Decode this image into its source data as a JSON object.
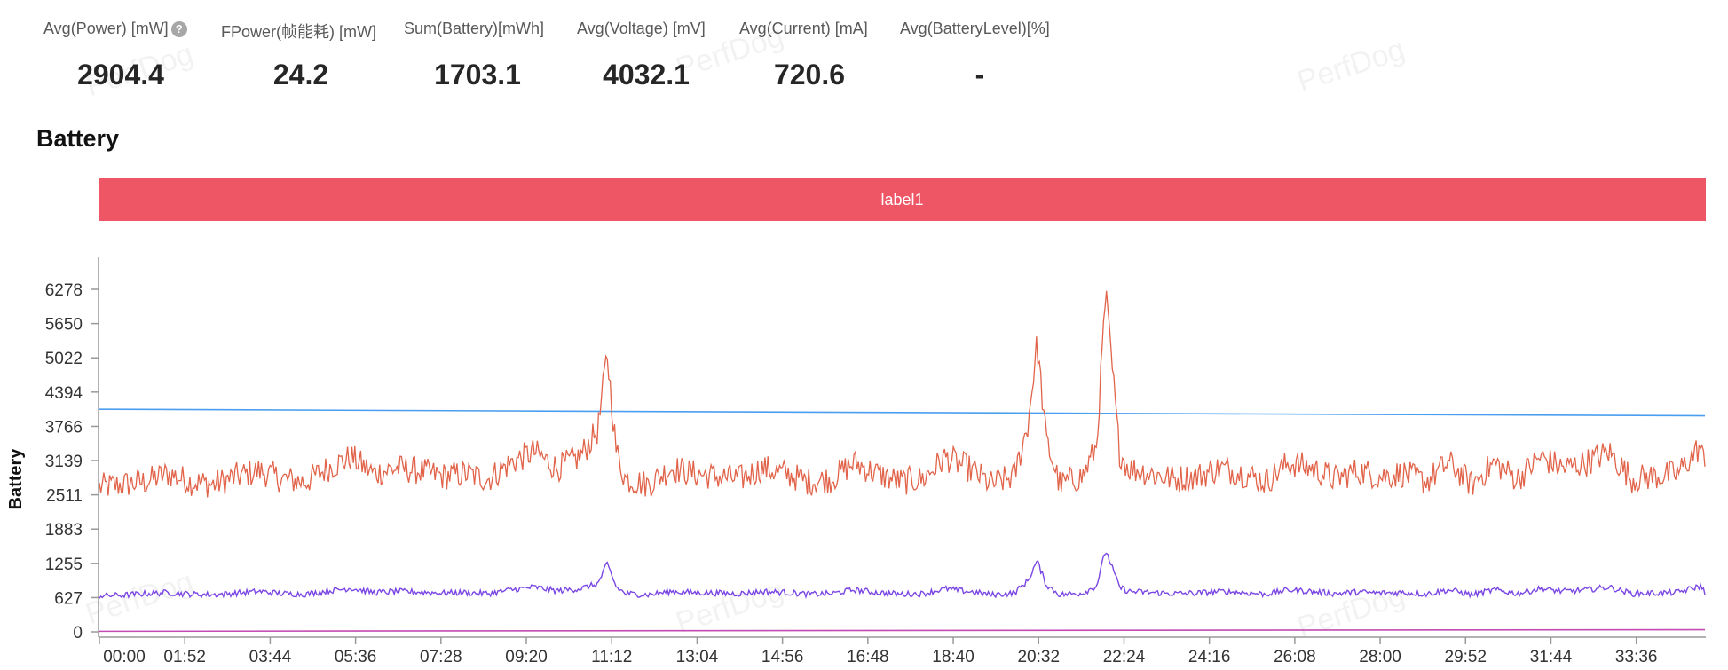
{
  "stats": [
    {
      "label": "Avg(Power) [mW]",
      "value": "2904.4",
      "has_help": true
    },
    {
      "label": "FPower(帧能耗) [mW]",
      "value": "24.2",
      "has_help": false
    },
    {
      "label": "Sum(Battery)[mWh]",
      "value": "1703.1",
      "has_help": false
    },
    {
      "label": "Avg(Voltage) [mV]",
      "value": "4032.1",
      "has_help": false
    },
    {
      "label": "Avg(Current) [mA]",
      "value": "720.6",
      "has_help": false
    },
    {
      "label": "Avg(BatteryLevel)[%]",
      "value": "-",
      "has_help": false
    }
  ],
  "help_icon": "?",
  "watermark_text": "PerfDog",
  "section_title": "Battery",
  "label_bar": {
    "text": "label1",
    "color": "#ee5666"
  },
  "chart_data": {
    "type": "line",
    "title": "",
    "ylabel": "Battery",
    "xlabel": "",
    "ylim": [
      0,
      6900
    ],
    "yticks": [
      0,
      627,
      1255,
      1883,
      2511,
      3139,
      3766,
      4394,
      5022,
      5650,
      6278
    ],
    "xticks": [
      "00:00",
      "01:52",
      "03:44",
      "05:36",
      "07:28",
      "09:20",
      "11:12",
      "13:04",
      "14:56",
      "16:48",
      "18:40",
      "20:32",
      "22:24",
      "24:16",
      "26:08",
      "28:00",
      "29:52",
      "31:44",
      "33:36"
    ],
    "xlim_minutes": [
      0,
      35.1
    ],
    "grid": false,
    "series": [
      {
        "color": "#4a9eef",
        "description_values": {
          "start": 4080,
          "end": 3960
        }
      },
      {
        "color": "#e1644a",
        "x_minutes": [
          0,
          0.5,
          1,
          1.5,
          2,
          2.5,
          3,
          3.5,
          4,
          4.5,
          5,
          5.5,
          6,
          6.5,
          7,
          7.5,
          8,
          8.5,
          9,
          9.5,
          10,
          10.5,
          10.9,
          11.1,
          11.3,
          11.5,
          12,
          12.5,
          13,
          13.5,
          14,
          14.5,
          15,
          15.5,
          16,
          16.5,
          17,
          17.5,
          18,
          18.5,
          19,
          19.5,
          20,
          20.3,
          20.5,
          20.7,
          21,
          21.5,
          21.8,
          22,
          22.3,
          22.5,
          23,
          23.5,
          24,
          24.5,
          25,
          25.5,
          26,
          26.5,
          27,
          27.5,
          28,
          28.5,
          29,
          29.5,
          30,
          30.5,
          31,
          31.5,
          32,
          32.5,
          33,
          33.5,
          34,
          34.5,
          35,
          35.1
        ],
        "values": [
          2650,
          2700,
          2750,
          2900,
          2750,
          2700,
          2850,
          2950,
          2800,
          2750,
          3000,
          3200,
          2900,
          3000,
          2950,
          2850,
          2900,
          2800,
          3100,
          3300,
          3000,
          3200,
          3700,
          5100,
          3300,
          2800,
          2700,
          3000,
          2900,
          2850,
          2800,
          3000,
          2900,
          2750,
          2800,
          3100,
          2900,
          2750,
          2800,
          3200,
          3000,
          2700,
          2850,
          3800,
          5300,
          3500,
          2700,
          2850,
          3400,
          6200,
          3300,
          3000,
          2900,
          2800,
          2850,
          3000,
          2900,
          2750,
          3100,
          3000,
          2800,
          2950,
          2850,
          2900,
          2750,
          3100,
          2700,
          3100,
          2800,
          3200,
          3000,
          3100,
          3300,
          2800,
          2850,
          2900,
          3400,
          3000
        ]
      },
      {
        "color": "#7b47e4",
        "x_minutes": [
          0,
          0.5,
          1,
          1.5,
          2,
          2.5,
          3,
          3.5,
          4,
          4.5,
          5,
          5.5,
          6,
          6.5,
          7,
          7.5,
          8,
          8.5,
          9,
          9.5,
          10,
          10.5,
          10.9,
          11.1,
          11.3,
          11.5,
          12,
          12.5,
          13,
          13.5,
          14,
          14.5,
          15,
          15.5,
          16,
          16.5,
          17,
          17.5,
          18,
          18.5,
          19,
          19.5,
          20,
          20.3,
          20.5,
          20.7,
          21,
          21.5,
          21.8,
          22,
          22.3,
          22.5,
          23,
          23.5,
          24,
          24.5,
          25,
          25.5,
          26,
          26.5,
          27,
          27.5,
          28,
          28.5,
          29,
          29.5,
          30,
          30.5,
          31,
          31.5,
          32,
          32.5,
          33,
          33.5,
          34,
          34.5,
          35,
          35.1
        ],
        "values": [
          660,
          670,
          700,
          720,
          690,
          680,
          710,
          740,
          700,
          690,
          750,
          800,
          720,
          740,
          730,
          710,
          720,
          700,
          770,
          820,
          750,
          790,
          880,
          1250,
          820,
          700,
          680,
          740,
          720,
          710,
          700,
          740,
          720,
          690,
          700,
          770,
          720,
          690,
          700,
          790,
          740,
          680,
          710,
          940,
          1300,
          860,
          680,
          710,
          840,
          1500,
          820,
          740,
          720,
          700,
          710,
          740,
          720,
          690,
          770,
          740,
          700,
          730,
          710,
          720,
          690,
          770,
          680,
          770,
          700,
          790,
          740,
          770,
          820,
          700,
          710,
          720,
          840,
          720
        ]
      },
      {
        "color": "#c44bb4",
        "description_values": {
          "start": 10,
          "end": 40
        }
      }
    ]
  }
}
